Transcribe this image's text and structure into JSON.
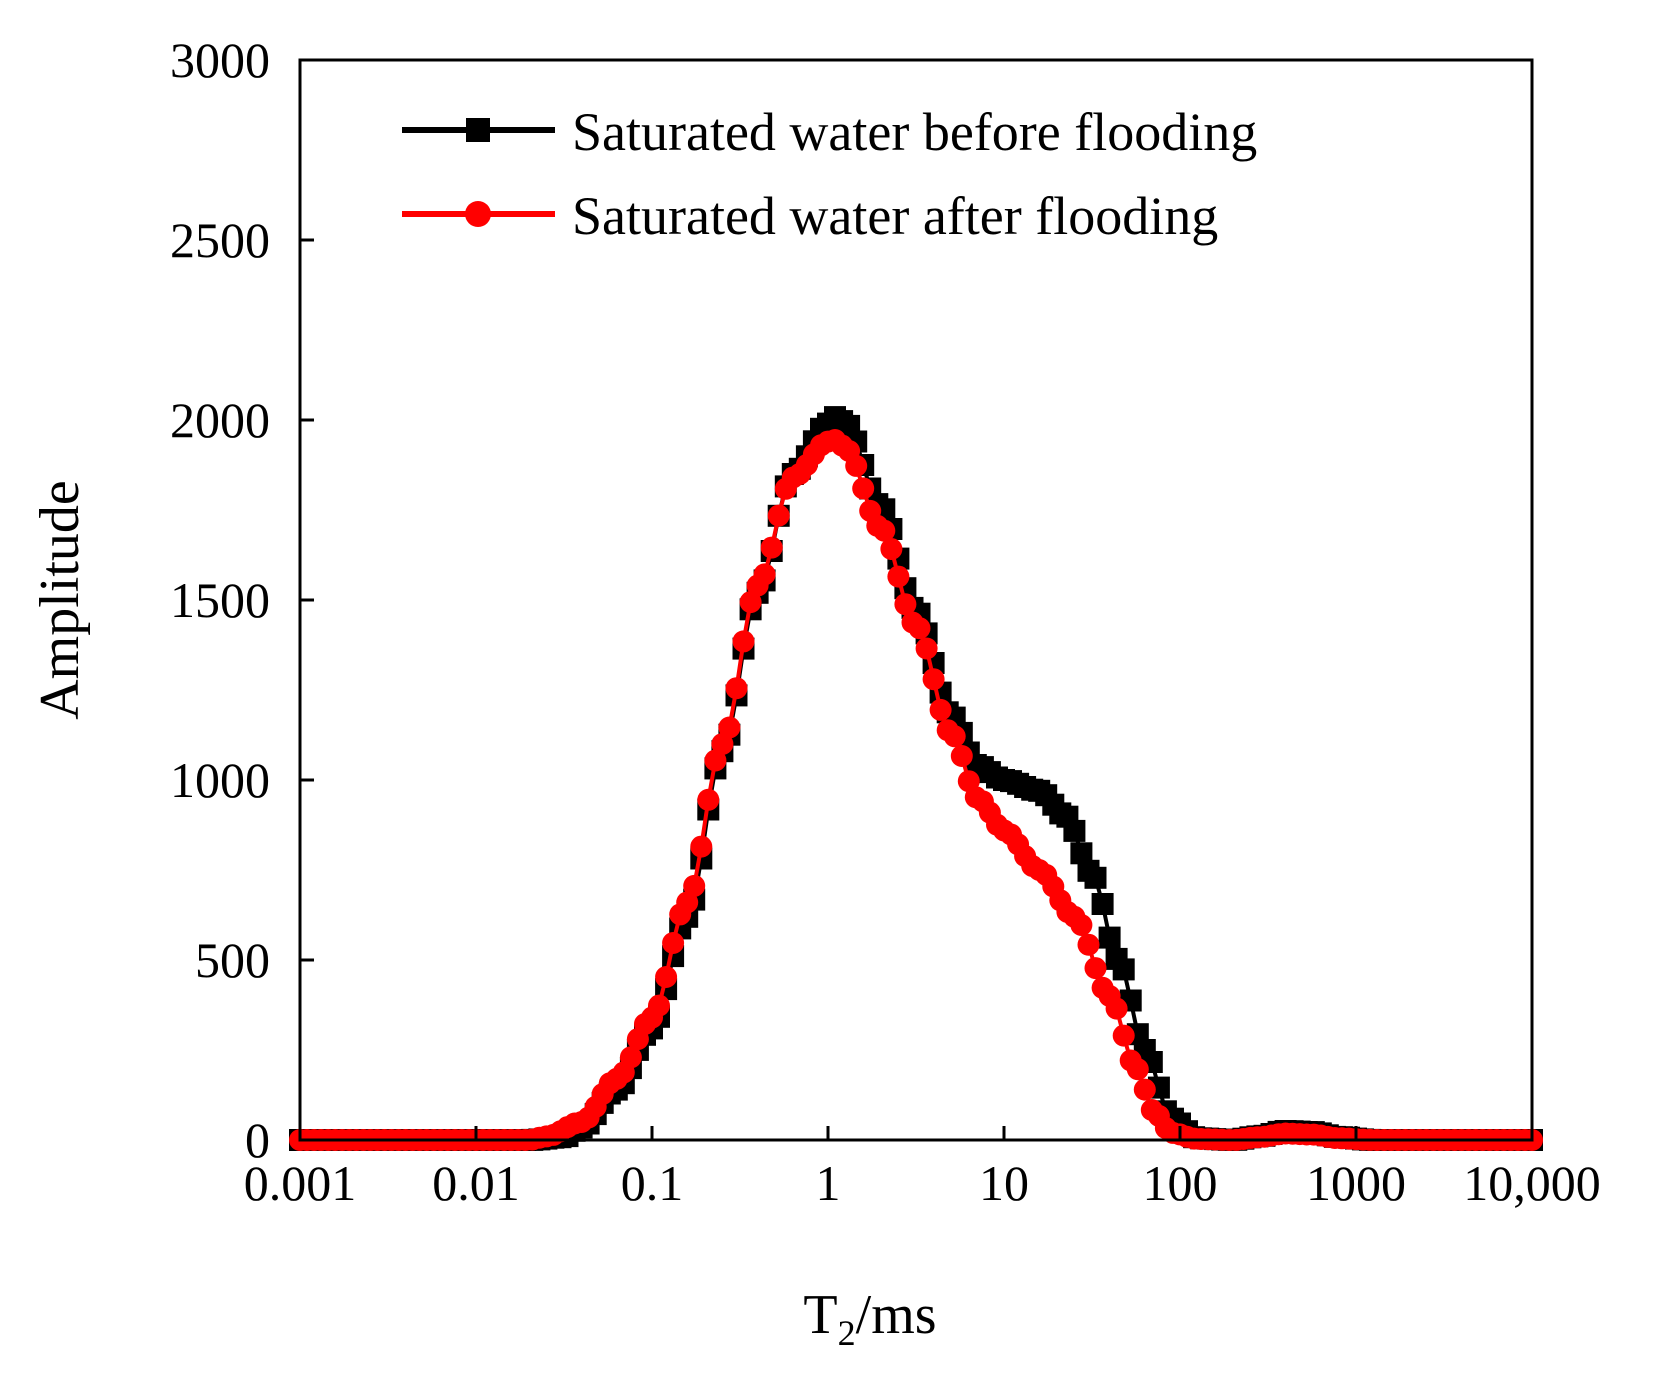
{
  "chart_data": {
    "type": "scatter",
    "title": "",
    "xlabel": "T",
    "xlabel_subscript": "2",
    "xlabel_suffix": "/ms",
    "ylabel": "Amplitude",
    "xscale": "log",
    "xlim": [
      0.001,
      10000
    ],
    "ylim": [
      0,
      3000
    ],
    "xticks": [
      0.001,
      0.01,
      0.1,
      1,
      10,
      100,
      1000,
      10000
    ],
    "xtick_labels": [
      "0.001",
      "0.01",
      "0.1",
      "1",
      "10",
      "100",
      "1000",
      "10,000"
    ],
    "yticks": [
      0,
      500,
      1000,
      1500,
      2000,
      2500,
      3000
    ],
    "ytick_labels": [
      "0",
      "500",
      "1000",
      "1500",
      "2000",
      "2500",
      "3000"
    ],
    "legend_position": "top-left",
    "series": [
      {
        "name": "Saturated water before flooding",
        "color": "#000000",
        "marker": "square",
        "knots": [
          [
            -3,
            0
          ],
          [
            -2,
            0
          ],
          [
            -1.7,
            0
          ],
          [
            -1.5,
            8
          ],
          [
            -1.4,
            35
          ],
          [
            -1.2,
            140
          ],
          [
            -1,
            310
          ],
          [
            -0.8,
            620
          ],
          [
            -0.6,
            1080
          ],
          [
            -0.4,
            1520
          ],
          [
            -0.2,
            1850
          ],
          [
            0,
            1990
          ],
          [
            0.05,
            2010
          ],
          [
            0.1,
            1990
          ],
          [
            0.3,
            1760
          ],
          [
            0.5,
            1470
          ],
          [
            0.7,
            1180
          ],
          [
            0.85,
            1040
          ],
          [
            1,
            1000
          ],
          [
            1.2,
            970
          ],
          [
            1.35,
            900
          ],
          [
            1.5,
            740
          ],
          [
            1.65,
            500
          ],
          [
            1.8,
            250
          ],
          [
            1.95,
            60
          ],
          [
            2.1,
            5
          ],
          [
            2.3,
            0
          ],
          [
            2.45,
            10
          ],
          [
            2.6,
            25
          ],
          [
            2.75,
            22
          ],
          [
            2.9,
            8
          ],
          [
            3.1,
            0
          ],
          [
            4,
            0
          ]
        ]
      },
      {
        "name": "Saturated water after flooding",
        "color": "#ff0000",
        "marker": "circle",
        "knots": [
          [
            -3,
            0
          ],
          [
            -2,
            0
          ],
          [
            -1.7,
            0
          ],
          [
            -1.6,
            10
          ],
          [
            -1.4,
            50
          ],
          [
            -1.2,
            170
          ],
          [
            -1,
            340
          ],
          [
            -0.8,
            660
          ],
          [
            -0.6,
            1100
          ],
          [
            -0.4,
            1540
          ],
          [
            -0.2,
            1840
          ],
          [
            0,
            1940
          ],
          [
            0.05,
            1945
          ],
          [
            0.1,
            1920
          ],
          [
            0.3,
            1700
          ],
          [
            0.5,
            1430
          ],
          [
            0.7,
            1130
          ],
          [
            0.85,
            950
          ],
          [
            1,
            860
          ],
          [
            1.2,
            750
          ],
          [
            1.4,
            620
          ],
          [
            1.6,
            400
          ],
          [
            1.75,
            200
          ],
          [
            1.85,
            80
          ],
          [
            1.95,
            20
          ],
          [
            2.1,
            3
          ],
          [
            2.3,
            0
          ],
          [
            2.45,
            8
          ],
          [
            2.6,
            18
          ],
          [
            2.75,
            15
          ],
          [
            2.9,
            5
          ],
          [
            3.1,
            0
          ],
          [
            4,
            0
          ]
        ]
      }
    ]
  }
}
